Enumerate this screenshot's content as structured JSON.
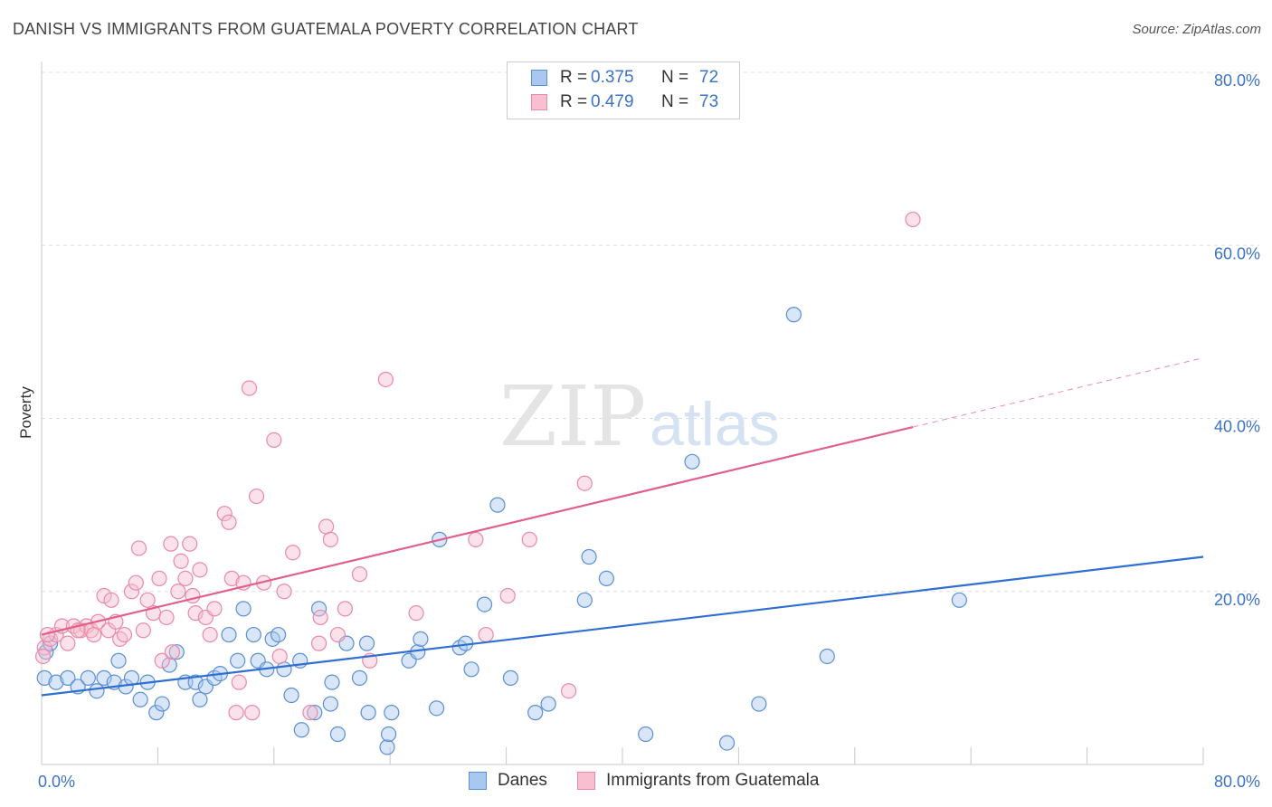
{
  "title": "DANISH VS IMMIGRANTS FROM GUATEMALA POVERTY CORRELATION CHART",
  "source": "Source: ZipAtlas.com",
  "watermark": {
    "zip": "ZIP",
    "atlas": "atlas"
  },
  "legend": {
    "rows": [
      {
        "r_label": "R = ",
        "r_value": "0.375",
        "n_label": "N = ",
        "n_value": "72",
        "color": "#a9c8ef",
        "border": "#5b8fd6"
      },
      {
        "r_label": "R = ",
        "r_value": "0.479",
        "n_label": "N = ",
        "n_value": "73",
        "color": "#f7bfd0",
        "border": "#e98aa8"
      }
    ]
  },
  "bottom_legend": [
    {
      "label": "Danes",
      "color": "#a9c8ef",
      "border": "#5b8fd6"
    },
    {
      "label": "Immigrants from Guatemala",
      "color": "#f7bfd0",
      "border": "#e98aa8"
    }
  ],
  "chart_data": {
    "type": "scatter",
    "ylabel": "Poverty",
    "xlim": [
      0,
      80
    ],
    "ylim": [
      0,
      80
    ],
    "x_tick_labels": [
      {
        "value": 0,
        "label": "0.0%"
      },
      {
        "value": 80,
        "label": "80.0%"
      }
    ],
    "y_tick_labels": [
      {
        "value": 20,
        "label": "20.0%"
      },
      {
        "value": 40,
        "label": "40.0%"
      },
      {
        "value": 60,
        "label": "60.0%"
      },
      {
        "value": 80,
        "label": "80.0%"
      }
    ],
    "grid": true,
    "series": [
      {
        "name": "Danes",
        "color": "#5b8fd6",
        "fill": "#a9c8ef",
        "line_color": "#2f6fd0",
        "trend": {
          "x": [
            0,
            80
          ],
          "y": [
            8.0,
            24.0
          ]
        },
        "points": [
          [
            0.2,
            10.0
          ],
          [
            1.0,
            9.5
          ],
          [
            1.8,
            10.0
          ],
          [
            2.5,
            9.0
          ],
          [
            3.2,
            10.0
          ],
          [
            3.8,
            8.5
          ],
          [
            4.3,
            10.0
          ],
          [
            5.0,
            9.5
          ],
          [
            5.3,
            12.0
          ],
          [
            5.8,
            9.0
          ],
          [
            6.2,
            10.0
          ],
          [
            6.8,
            7.5
          ],
          [
            7.3,
            9.5
          ],
          [
            7.9,
            6.0
          ],
          [
            8.3,
            7.0
          ],
          [
            8.8,
            11.5
          ],
          [
            9.3,
            13.0
          ],
          [
            9.9,
            9.5
          ],
          [
            10.6,
            9.5
          ],
          [
            10.9,
            7.5
          ],
          [
            11.3,
            9.0
          ],
          [
            11.9,
            10.0
          ],
          [
            12.3,
            10.5
          ],
          [
            12.9,
            15.0
          ],
          [
            13.5,
            12.0
          ],
          [
            13.9,
            18.0
          ],
          [
            14.6,
            15.0
          ],
          [
            14.9,
            12.0
          ],
          [
            15.5,
            11.0
          ],
          [
            15.9,
            14.5
          ],
          [
            16.3,
            15.0
          ],
          [
            16.7,
            11.0
          ],
          [
            17.2,
            8.0
          ],
          [
            17.8,
            12.0
          ],
          [
            17.9,
            4.0
          ],
          [
            18.8,
            6.0
          ],
          [
            19.1,
            18.0
          ],
          [
            19.9,
            7.0
          ],
          [
            20.0,
            9.5
          ],
          [
            20.4,
            3.5
          ],
          [
            21.0,
            14.0
          ],
          [
            21.9,
            10.0
          ],
          [
            22.4,
            14.0
          ],
          [
            22.5,
            6.0
          ],
          [
            23.8,
            2.0
          ],
          [
            23.9,
            3.5
          ],
          [
            24.1,
            6.0
          ],
          [
            25.3,
            12.0
          ],
          [
            25.9,
            13.0
          ],
          [
            26.1,
            14.5
          ],
          [
            27.2,
            6.5
          ],
          [
            27.4,
            26.0
          ],
          [
            28.8,
            13.5
          ],
          [
            29.2,
            14.0
          ],
          [
            29.6,
            11.0
          ],
          [
            30.5,
            18.5
          ],
          [
            31.4,
            30.0
          ],
          [
            32.3,
            10.0
          ],
          [
            34.0,
            6.0
          ],
          [
            34.9,
            7.0
          ],
          [
            37.4,
            19.0
          ],
          [
            37.7,
            24.0
          ],
          [
            38.9,
            21.5
          ],
          [
            41.6,
            3.5
          ],
          [
            44.8,
            35.0
          ],
          [
            47.2,
            2.5
          ],
          [
            49.4,
            7.0
          ],
          [
            51.8,
            52.0
          ],
          [
            54.1,
            12.5
          ],
          [
            63.2,
            19.0
          ],
          [
            0.3,
            13.0
          ],
          [
            0.6,
            14.0
          ]
        ]
      },
      {
        "name": "Immigrants from Guatemala",
        "color": "#e98aa8",
        "fill": "#f7bfd0",
        "line_color": "#e0608a",
        "trend": {
          "x": [
            0,
            80
          ],
          "y": [
            15.0,
            47.0
          ]
        },
        "trend_solid_until": 60,
        "points": [
          [
            0.2,
            13.5
          ],
          [
            0.6,
            14.5
          ],
          [
            1.0,
            15.0
          ],
          [
            1.4,
            16.0
          ],
          [
            1.8,
            14.0
          ],
          [
            2.2,
            16.0
          ],
          [
            2.7,
            15.5
          ],
          [
            3.1,
            16.0
          ],
          [
            3.4,
            15.5
          ],
          [
            3.6,
            15.0
          ],
          [
            3.9,
            16.5
          ],
          [
            4.3,
            19.5
          ],
          [
            4.6,
            15.5
          ],
          [
            4.8,
            19.0
          ],
          [
            5.1,
            16.5
          ],
          [
            5.4,
            14.5
          ],
          [
            5.7,
            15.0
          ],
          [
            6.2,
            20.0
          ],
          [
            6.5,
            21.0
          ],
          [
            6.7,
            25.0
          ],
          [
            7.0,
            15.5
          ],
          [
            7.3,
            19.0
          ],
          [
            7.7,
            17.5
          ],
          [
            8.1,
            21.5
          ],
          [
            8.3,
            12.0
          ],
          [
            8.6,
            17.0
          ],
          [
            8.9,
            25.5
          ],
          [
            9.0,
            13.0
          ],
          [
            9.4,
            20.0
          ],
          [
            9.6,
            23.5
          ],
          [
            9.9,
            21.5
          ],
          [
            10.2,
            25.5
          ],
          [
            10.4,
            19.5
          ],
          [
            10.6,
            17.5
          ],
          [
            10.9,
            22.5
          ],
          [
            11.3,
            17.0
          ],
          [
            11.6,
            15.0
          ],
          [
            11.9,
            18.0
          ],
          [
            12.6,
            29.0
          ],
          [
            12.9,
            28.0
          ],
          [
            13.1,
            21.5
          ],
          [
            13.4,
            6.0
          ],
          [
            13.6,
            9.5
          ],
          [
            13.9,
            21.0
          ],
          [
            14.3,
            43.5
          ],
          [
            14.5,
            6.0
          ],
          [
            14.8,
            31.0
          ],
          [
            15.3,
            21.0
          ],
          [
            16.0,
            37.5
          ],
          [
            16.4,
            12.5
          ],
          [
            16.7,
            20.0
          ],
          [
            17.3,
            24.5
          ],
          [
            18.5,
            6.0
          ],
          [
            19.1,
            14.0
          ],
          [
            19.2,
            17.0
          ],
          [
            19.6,
            27.5
          ],
          [
            19.9,
            26.0
          ],
          [
            20.4,
            15.0
          ],
          [
            20.9,
            18.0
          ],
          [
            21.9,
            22.0
          ],
          [
            22.6,
            12.0
          ],
          [
            23.7,
            44.5
          ],
          [
            25.8,
            17.5
          ],
          [
            29.9,
            26.0
          ],
          [
            30.6,
            15.0
          ],
          [
            32.1,
            19.5
          ],
          [
            33.6,
            26.0
          ],
          [
            36.3,
            8.5
          ],
          [
            37.4,
            32.5
          ],
          [
            60.0,
            63.0
          ],
          [
            0.1,
            12.5
          ],
          [
            0.4,
            15.0
          ],
          [
            2.5,
            15.5
          ]
        ]
      }
    ]
  }
}
